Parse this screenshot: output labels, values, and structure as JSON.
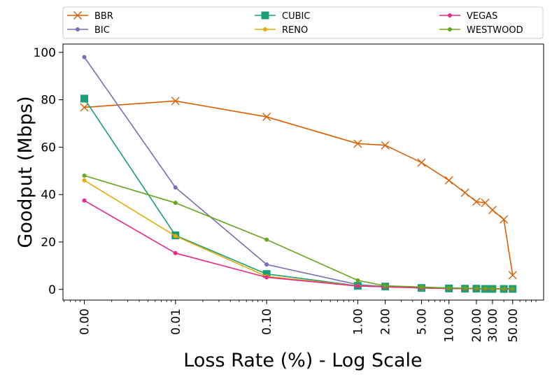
{
  "chart_data": {
    "type": "line",
    "title": "",
    "xlabel": "Loss Rate (%) - Log Scale",
    "ylabel": "Goodput (Mbps)",
    "x_scale": "log",
    "ylim": [
      -4.5,
      103.5
    ],
    "y_ticks": [
      0,
      20,
      40,
      60,
      80,
      100
    ],
    "x_tick_labels": [
      "0.00",
      "0.01",
      "0.10",
      "1.00",
      "2.00",
      "5.00",
      "10.00",
      "20.00",
      "30.00",
      "50.00"
    ],
    "grid": false,
    "legend_placement": "top, above plot, 3 columns",
    "series": [
      {
        "name": "BBR",
        "color": "#d95f02",
        "marker": "x",
        "points": [
          [
            "0.00",
            76.8
          ],
          [
            "0.01",
            79.5
          ],
          [
            "0.10",
            72.8
          ],
          [
            "1.00",
            61.5
          ],
          [
            "2.00",
            60.8
          ],
          [
            "5.00",
            53.5
          ],
          [
            "10.00",
            46
          ],
          [
            "15.00",
            40.8
          ],
          [
            "20.00",
            37
          ],
          [
            "25.00",
            36.5
          ],
          [
            "30.00",
            33.5
          ],
          [
            "40.00",
            29.5
          ],
          [
            "50.00",
            6
          ]
        ]
      },
      {
        "name": "BIC",
        "color": "#7570b3",
        "marker": "dot",
        "points": [
          [
            "0.00",
            98
          ],
          [
            "0.01",
            43
          ],
          [
            "0.10",
            10.5
          ],
          [
            "1.00",
            2
          ],
          [
            "2.00",
            1.2
          ],
          [
            "5.00",
            0.7
          ],
          [
            "10.00",
            0.4
          ],
          [
            "15.00",
            0.3
          ],
          [
            "20.00",
            0.3
          ],
          [
            "25.00",
            0.2
          ],
          [
            "30.00",
            0.2
          ],
          [
            "40.00",
            0.2
          ],
          [
            "50.00",
            0.1
          ]
        ]
      },
      {
        "name": "CUBIC",
        "color": "#1b9e77",
        "marker": "square",
        "points": [
          [
            "0.00",
            80.5
          ],
          [
            "0.01",
            22.8
          ],
          [
            "0.10",
            6.5
          ],
          [
            "1.00",
            1.5
          ],
          [
            "2.00",
            1.2
          ],
          [
            "5.00",
            0.6
          ],
          [
            "10.00",
            0.4
          ],
          [
            "15.00",
            0.3
          ],
          [
            "20.00",
            0.3
          ],
          [
            "25.00",
            0.2
          ],
          [
            "30.00",
            0.2
          ],
          [
            "40.00",
            0.2
          ],
          [
            "50.00",
            0.2
          ]
        ]
      },
      {
        "name": "RENO",
        "color": "#e6ab02",
        "marker": "dot",
        "points": [
          [
            "0.00",
            46
          ],
          [
            "0.01",
            22.5
          ],
          [
            "0.10",
            5.5
          ],
          [
            "1.00",
            1.5
          ],
          [
            "2.00",
            1.1
          ],
          [
            "5.00",
            0.6
          ],
          [
            "10.00",
            0.4
          ],
          [
            "15.00",
            0.3
          ],
          [
            "20.00",
            0.3
          ],
          [
            "25.00",
            0.2
          ],
          [
            "30.00",
            0.2
          ],
          [
            "40.00",
            0.2
          ],
          [
            "50.00",
            0.1
          ]
        ]
      },
      {
        "name": "VEGAS",
        "color": "#e7298a",
        "marker": "dot",
        "points": [
          [
            "0.00",
            37.5
          ],
          [
            "0.01",
            15.3
          ],
          [
            "0.10",
            5.1
          ],
          [
            "1.00",
            1.4
          ],
          [
            "2.00",
            1.1
          ],
          [
            "5.00",
            0.6
          ],
          [
            "10.00",
            0.4
          ],
          [
            "15.00",
            0.3
          ],
          [
            "20.00",
            0.3
          ],
          [
            "25.00",
            0.2
          ],
          [
            "30.00",
            0.2
          ],
          [
            "40.00",
            0.2
          ],
          [
            "50.00",
            0.1
          ]
        ]
      },
      {
        "name": "WESTWOOD",
        "color": "#66a61e",
        "marker": "dot",
        "points": [
          [
            "0.00",
            48
          ],
          [
            "0.01",
            36.5
          ],
          [
            "0.10",
            21
          ],
          [
            "1.00",
            3.8
          ],
          [
            "2.00",
            1.5
          ],
          [
            "5.00",
            1
          ],
          [
            "10.00",
            0.6
          ],
          [
            "15.00",
            0.5
          ],
          [
            "20.00",
            0.4
          ],
          [
            "25.00",
            0.4
          ],
          [
            "30.00",
            0.3
          ],
          [
            "40.00",
            0.3
          ],
          [
            "50.00",
            0.3
          ]
        ]
      }
    ]
  }
}
